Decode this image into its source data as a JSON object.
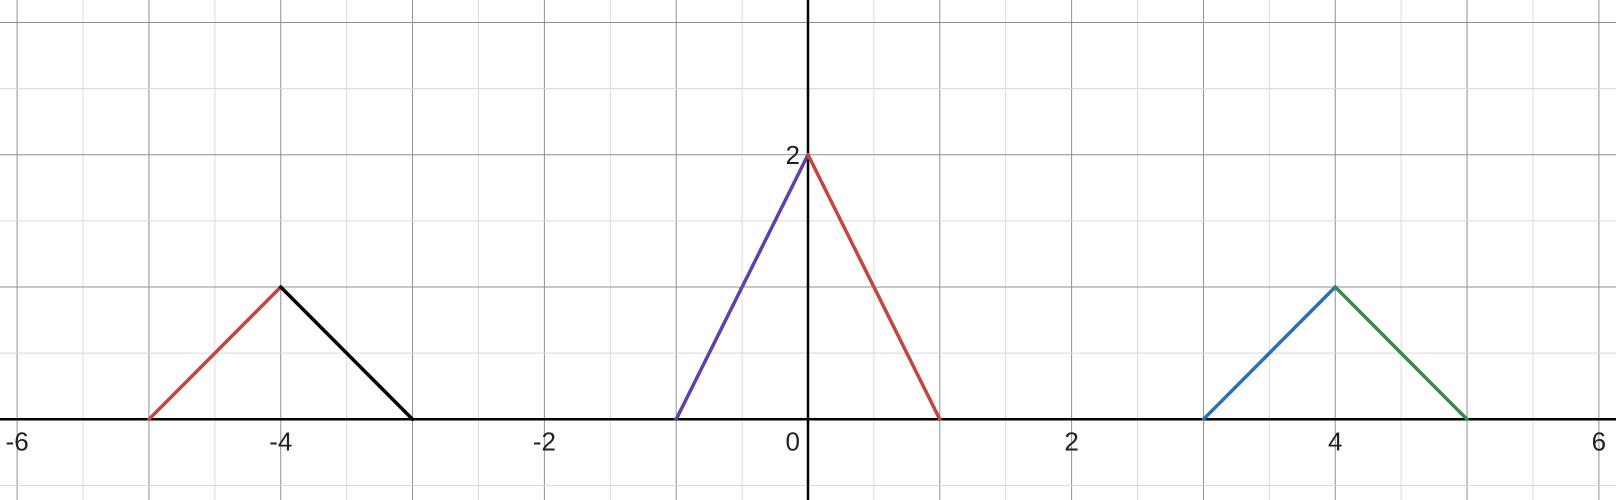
{
  "chart_data": {
    "type": "line",
    "title": "",
    "xlabel": "",
    "ylabel": "",
    "xlim": [
      -6.13,
      6.13
    ],
    "ylim": [
      -0.61,
      3.17
    ],
    "grid": true,
    "minor_grid_step": 0.5,
    "major_grid_step": 1,
    "x_ticks": [
      {
        "value": -6,
        "label": "-6"
      },
      {
        "value": -4,
        "label": "-4"
      },
      {
        "value": -2,
        "label": "-2"
      },
      {
        "value": 0,
        "label": "0"
      },
      {
        "value": 2,
        "label": "2"
      },
      {
        "value": 4,
        "label": "4"
      },
      {
        "value": 6,
        "label": "6"
      }
    ],
    "y_ticks": [
      {
        "value": 2,
        "label": "2"
      }
    ],
    "series": [
      {
        "color": "#c74440",
        "points": [
          [
            -5,
            0
          ],
          [
            -4,
            1
          ]
        ]
      },
      {
        "color": "#000000",
        "points": [
          [
            -4,
            1
          ],
          [
            -3,
            0
          ]
        ]
      },
      {
        "color": "#6042a6",
        "points": [
          [
            -1,
            0
          ],
          [
            0,
            2
          ]
        ]
      },
      {
        "color": "#c74440",
        "points": [
          [
            0,
            2
          ],
          [
            1,
            0
          ]
        ]
      },
      {
        "color": "#2d70b3",
        "points": [
          [
            3,
            0
          ],
          [
            4,
            1
          ]
        ]
      },
      {
        "color": "#388c46",
        "points": [
          [
            4,
            1
          ],
          [
            5,
            0
          ]
        ]
      }
    ]
  }
}
